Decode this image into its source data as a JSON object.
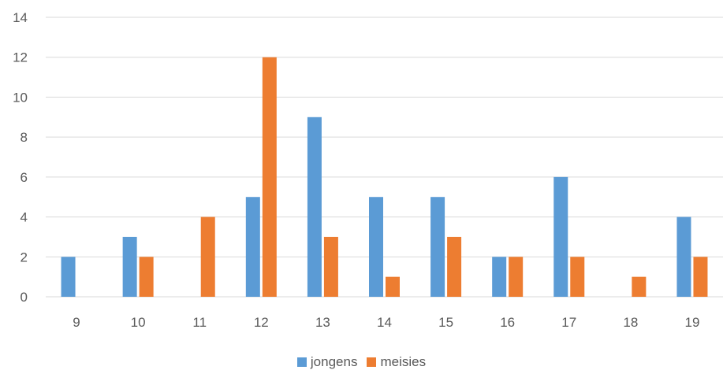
{
  "chart_data": {
    "type": "bar",
    "categories": [
      "9",
      "10",
      "11",
      "12",
      "13",
      "14",
      "15",
      "16",
      "17",
      "18",
      "19"
    ],
    "series": [
      {
        "name": "jongens",
        "color": "#5B9BD5",
        "values": [
          2,
          3,
          0,
          5,
          9,
          5,
          5,
          2,
          6,
          0,
          4
        ]
      },
      {
        "name": "meisies",
        "color": "#ED7D31",
        "values": [
          0,
          2,
          4,
          12,
          3,
          1,
          3,
          2,
          2,
          1,
          2
        ]
      }
    ],
    "yticks": [
      "0",
      "2",
      "4",
      "6",
      "8",
      "10",
      "12",
      "14"
    ],
    "ylim": [
      0,
      14
    ],
    "grid": true,
    "gridColor": "#D9D9D9",
    "legend": "bottom"
  }
}
